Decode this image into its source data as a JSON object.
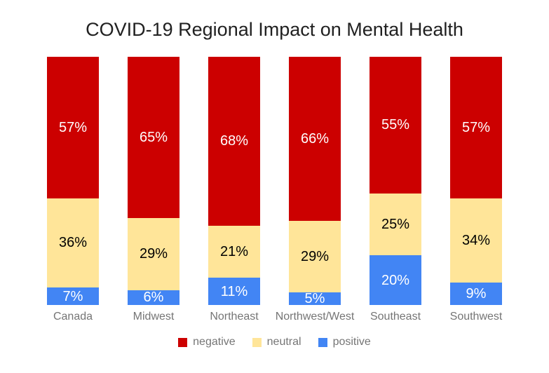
{
  "title": "COVID-19 Regional Impact on Mental Health",
  "colors": {
    "background": "#ffffff",
    "title_text": "#212121",
    "axis_text": "#757575",
    "legend_text": "#757575",
    "negative": "#cc0000",
    "neutral": "#ffe599",
    "positive": "#4285f4"
  },
  "chart_data": {
    "type": "bar",
    "subtype": "stacked-100-percent-column",
    "title": "COVID-19 Regional Impact on Mental Health",
    "unit": "%",
    "categories": [
      "Canada",
      "Midwest",
      "Northeast",
      "Northwest/West",
      "Southeast",
      "Southwest"
    ],
    "series": [
      {
        "name": "negative",
        "color": "#cc0000",
        "label_color": "#ffffff",
        "values": [
          57,
          65,
          68,
          66,
          55,
          57
        ]
      },
      {
        "name": "neutral",
        "color": "#ffe599",
        "label_color": "#000000",
        "values": [
          36,
          29,
          21,
          29,
          25,
          34
        ]
      },
      {
        "name": "positive",
        "color": "#4285f4",
        "label_color": "#ffffff",
        "values": [
          7,
          6,
          11,
          5,
          20,
          9
        ]
      }
    ],
    "stack_order_top_to_bottom": [
      "negative",
      "neutral",
      "positive"
    ],
    "value_labels": "inside segments, percent",
    "ylim": [
      0,
      100
    ],
    "grid": false,
    "axes_visible": false,
    "legend_position": "bottom",
    "legend": [
      {
        "label": "negative",
        "color": "#cc0000"
      },
      {
        "label": "neutral",
        "color": "#ffe599"
      },
      {
        "label": "positive",
        "color": "#4285f4"
      }
    ]
  }
}
